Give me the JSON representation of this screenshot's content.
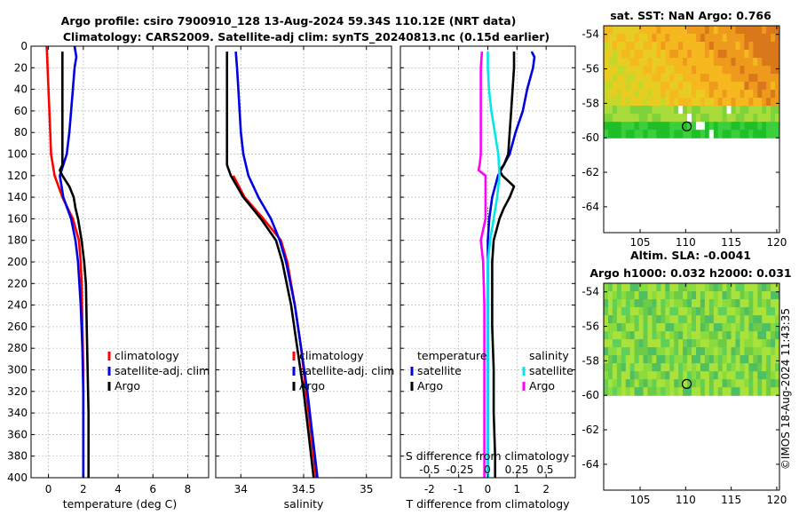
{
  "header": {
    "line1": "Argo profile: csiro 7900910_128 13-Aug-2024 59.34S 110.12E (NRT data)",
    "line2": "Climatology: CARS2009. Satellite-adj clim: synTS_20240813.nc (0.15d earlier)"
  },
  "copyright": "©IMOS 18-Aug-2024 11:43:35",
  "colors": {
    "climatology": "#ff0000",
    "satellite": "#0000e0",
    "argo": "#000000",
    "salinity_satellite": "#00e8e8",
    "salinity_argo": "#ff00ff"
  },
  "chart_data": [
    {
      "id": "temperature-profile",
      "type": "line",
      "xlabel": "temperature (deg C)",
      "ylabel": "",
      "xlim": [
        -1,
        9.2
      ],
      "ylim": [
        400,
        0
      ],
      "xticks": [
        0,
        2,
        4,
        6,
        8
      ],
      "xtick_labels": [
        "0",
        "2",
        "4",
        "6",
        "8"
      ],
      "yticks": [
        0,
        20,
        40,
        60,
        80,
        100,
        120,
        140,
        160,
        180,
        200,
        220,
        240,
        260,
        280,
        300,
        320,
        340,
        360,
        380,
        400
      ],
      "ytick_labels": [
        "0",
        "20",
        "40",
        "60",
        "80",
        "100",
        "120",
        "140",
        "160",
        "180",
        "200",
        "220",
        "240",
        "260",
        "280",
        "300",
        "320",
        "340",
        "360",
        "380",
        "400"
      ],
      "grid": true,
      "legend": [
        "climatology",
        "satellite-adj. clim",
        "Argo"
      ],
      "series": [
        {
          "name": "climatology",
          "color": "#ff0000",
          "depth": [
            0,
            20,
            40,
            60,
            80,
            100,
            120,
            140,
            160,
            180,
            200,
            220,
            260,
            300,
            340,
            380,
            400
          ],
          "values": [
            -0.1,
            -0.05,
            0,
            0.05,
            0.1,
            0.15,
            0.35,
            0.8,
            1.4,
            1.75,
            1.85,
            1.9,
            1.95,
            2.0,
            2.0,
            2.0,
            2.0
          ]
        },
        {
          "name": "satellite-adj. clim",
          "color": "#0000e0",
          "depth": [
            0,
            10,
            20,
            40,
            60,
            80,
            100,
            120,
            140,
            160,
            180,
            200,
            240,
            280,
            320,
            360,
            400
          ],
          "values": [
            1.5,
            1.6,
            1.5,
            1.4,
            1.3,
            1.2,
            1.05,
            0.65,
            0.85,
            1.3,
            1.55,
            1.7,
            1.85,
            1.95,
            2.0,
            2.0,
            2.0
          ]
        },
        {
          "name": "Argo",
          "color": "#000000",
          "depth": [
            5,
            20,
            40,
            60,
            80,
            100,
            110,
            115,
            120,
            130,
            140,
            150,
            160,
            180,
            200,
            220,
            260,
            300,
            340,
            380,
            400
          ],
          "values": [
            0.8,
            0.8,
            0.8,
            0.8,
            0.8,
            0.8,
            0.8,
            0.65,
            0.8,
            1.2,
            1.45,
            1.55,
            1.7,
            1.9,
            2.05,
            2.15,
            2.2,
            2.25,
            2.3,
            2.3,
            2.3
          ]
        }
      ]
    },
    {
      "id": "salinity-profile",
      "type": "line",
      "xlabel": "salinity",
      "ylabel": "",
      "xlim": [
        33.8,
        35.2
      ],
      "ylim": [
        400,
        0
      ],
      "xticks": [
        34,
        34.5,
        35
      ],
      "xtick_labels": [
        "34",
        "34.5",
        "35"
      ],
      "grid": true,
      "legend": [
        "climatology",
        "satellite-adj. clim",
        "Argo"
      ],
      "series": [
        {
          "name": "climatology",
          "color": "#ff0000",
          "depth": [
            120,
            140,
            160,
            180,
            200,
            240,
            280,
            320,
            360,
            400
          ],
          "values": [
            33.94,
            34.03,
            34.18,
            34.32,
            34.37,
            34.43,
            34.48,
            34.52,
            34.56,
            34.6
          ]
        },
        {
          "name": "satellite-adj. clim",
          "color": "#0000e0",
          "depth": [
            5,
            20,
            40,
            60,
            80,
            100,
            120,
            140,
            160,
            180,
            200,
            240,
            280,
            320,
            360,
            400
          ],
          "values": [
            33.96,
            33.97,
            33.98,
            33.99,
            34.0,
            34.02,
            34.06,
            34.14,
            34.24,
            34.31,
            34.36,
            34.43,
            34.48,
            34.53,
            34.57,
            34.61
          ]
        },
        {
          "name": "Argo",
          "color": "#000000",
          "depth": [
            5,
            20,
            40,
            60,
            80,
            100,
            110,
            120,
            140,
            160,
            180,
            200,
            240,
            280,
            320,
            360,
            400
          ],
          "values": [
            33.89,
            33.89,
            33.89,
            33.89,
            33.89,
            33.89,
            33.89,
            33.92,
            34.02,
            34.16,
            34.28,
            34.33,
            34.4,
            34.45,
            34.5,
            34.54,
            34.58
          ]
        }
      ]
    },
    {
      "id": "difference-profile",
      "type": "line",
      "xlabel": "T difference from climatology",
      "xlabel_top": "S difference from climatology",
      "xlim": [
        -3,
        3
      ],
      "ylim": [
        400,
        0
      ],
      "xticks": [
        -2,
        -1,
        0,
        1,
        2
      ],
      "xtick_labels": [
        "-2",
        "-1",
        "0",
        "1",
        "2"
      ],
      "s_tick_labels": [
        "-0.5",
        "-0.25",
        "0",
        "0.25",
        "0.5"
      ],
      "grid": true,
      "legend_left_title": "temperature",
      "legend_right_title": "salinity",
      "legend": [
        "satellite",
        "Argo",
        "satellite",
        "Argo"
      ],
      "series": [
        {
          "name": "temperature satellite",
          "color": "#0000e0",
          "depth": [
            5,
            10,
            20,
            40,
            60,
            80,
            100,
            120,
            140,
            160,
            180,
            200,
            240,
            280,
            320,
            360,
            400
          ],
          "values": [
            1.5,
            1.6,
            1.55,
            1.35,
            1.2,
            0.95,
            0.75,
            0.35,
            0.15,
            0.05,
            0.0,
            0.0,
            0.0,
            0.0,
            0.0,
            0.0,
            0.0
          ]
        },
        {
          "name": "temperature Argo",
          "color": "#000000",
          "depth": [
            5,
            20,
            40,
            60,
            80,
            100,
            110,
            115,
            120,
            130,
            140,
            150,
            160,
            180,
            200,
            220,
            260,
            300,
            340,
            380,
            400
          ],
          "values": [
            0.9,
            0.9,
            0.85,
            0.8,
            0.75,
            0.7,
            0.55,
            0.4,
            0.5,
            0.9,
            0.75,
            0.55,
            0.4,
            0.2,
            0.15,
            0.15,
            0.15,
            0.2,
            0.2,
            0.25,
            0.25
          ]
        },
        {
          "name": "salinity satellite",
          "color": "#00e8e8",
          "depth": [
            5,
            20,
            40,
            60,
            80,
            100,
            120,
            140,
            160,
            180,
            200,
            240,
            300,
            350,
            400
          ],
          "values": [
            0.0,
            0.0,
            0.01,
            0.03,
            0.06,
            0.09,
            0.1,
            0.08,
            0.05,
            0.02,
            0.0,
            0.0,
            0.0,
            0.0,
            0.0
          ]
        },
        {
          "name": "salinity Argo",
          "color": "#ff00ff",
          "depth": [
            5,
            20,
            40,
            60,
            80,
            100,
            110,
            115,
            120,
            140,
            160,
            180,
            200,
            240,
            300,
            350,
            400
          ],
          "values": [
            -0.05,
            -0.06,
            -0.06,
            -0.06,
            -0.06,
            -0.06,
            -0.07,
            -0.08,
            -0.02,
            -0.02,
            -0.02,
            -0.06,
            -0.04,
            -0.03,
            -0.03,
            -0.03,
            -0.03
          ]
        }
      ]
    },
    {
      "id": "sst-map",
      "type": "heatmap",
      "title": "sat. SST: NaN Argo: 0.766",
      "xlim": [
        101,
        120.3
      ],
      "ylim": [
        -65.5,
        -53.5
      ],
      "xticks": [
        105,
        110,
        115,
        120
      ],
      "xtick_labels": [
        "105",
        "110",
        "115",
        "120"
      ],
      "yticks": [
        -54,
        -56,
        -58,
        -60,
        -62,
        -64
      ],
      "ytick_labels": [
        "-54",
        "-56",
        "-58",
        "-60",
        "-62",
        "-64"
      ],
      "data_lat_range": [
        -60,
        -53.5
      ],
      "argo_position": {
        "lon": 110.12,
        "lat": -59.34
      }
    },
    {
      "id": "sla-map",
      "type": "heatmap",
      "title": "Altim. SLA: -0.0041",
      "subtitle": "Argo h1000: 0.032 h2000: 0.031",
      "xlim": [
        101,
        120.3
      ],
      "ylim": [
        -65.5,
        -53.5
      ],
      "xticks": [
        105,
        110,
        115,
        120
      ],
      "xtick_labels": [
        "105",
        "110",
        "115",
        "120"
      ],
      "yticks": [
        -54,
        -56,
        -58,
        -60,
        -62,
        -64
      ],
      "ytick_labels": [
        "-54",
        "-56",
        "-58",
        "-60",
        "-62",
        "-64"
      ],
      "data_lat_range": [
        -60,
        -53.5
      ],
      "argo_position": {
        "lon": 110.12,
        "lat": -59.34
      }
    }
  ]
}
